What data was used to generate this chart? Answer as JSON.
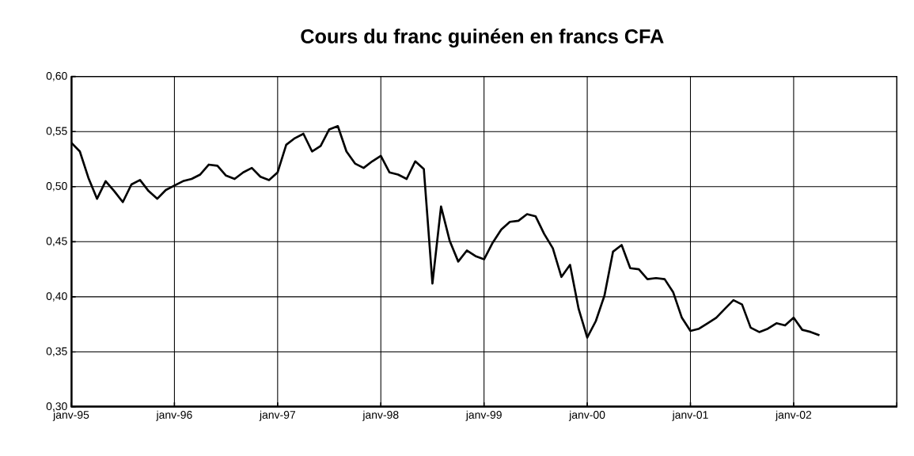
{
  "chart_data": {
    "type": "line",
    "title": "Cours du franc guinéen en francs CFA",
    "x": [
      "1995-01",
      "1995-02",
      "1995-03",
      "1995-04",
      "1995-05",
      "1995-06",
      "1995-07",
      "1995-08",
      "1995-09",
      "1995-10",
      "1995-11",
      "1995-12",
      "1996-01",
      "1996-02",
      "1996-03",
      "1996-04",
      "1996-05",
      "1996-06",
      "1996-07",
      "1996-08",
      "1996-09",
      "1996-10",
      "1996-11",
      "1996-12",
      "1997-01",
      "1997-02",
      "1997-03",
      "1997-04",
      "1997-05",
      "1997-06",
      "1997-07",
      "1997-08",
      "1997-09",
      "1997-10",
      "1997-11",
      "1997-12",
      "1998-01",
      "1998-02",
      "1998-03",
      "1998-04",
      "1998-05",
      "1998-06",
      "1998-07",
      "1998-08",
      "1998-09",
      "1998-10",
      "1998-11",
      "1998-12",
      "1999-01",
      "1999-02",
      "1999-03",
      "1999-04",
      "1999-05",
      "1999-06",
      "1999-07",
      "1999-08",
      "1999-09",
      "1999-10",
      "1999-11",
      "1999-12",
      "2000-01",
      "2000-02",
      "2000-03",
      "2000-04",
      "2000-05",
      "2000-06",
      "2000-07",
      "2000-08",
      "2000-09",
      "2000-10",
      "2000-11",
      "2000-12",
      "2001-01",
      "2001-02",
      "2001-03",
      "2001-04",
      "2001-05",
      "2001-06",
      "2001-07",
      "2001-08",
      "2001-09",
      "2001-10",
      "2001-11",
      "2001-12",
      "2002-01",
      "2002-02",
      "2002-03",
      "2002-04"
    ],
    "values": [
      0.54,
      0.532,
      0.508,
      0.489,
      0.505,
      0.496,
      0.486,
      0.502,
      0.506,
      0.496,
      0.489,
      0.497,
      0.501,
      0.505,
      0.507,
      0.511,
      0.52,
      0.519,
      0.51,
      0.507,
      0.513,
      0.517,
      0.509,
      0.506,
      0.513,
      0.538,
      0.544,
      0.548,
      0.532,
      0.537,
      0.552,
      0.555,
      0.532,
      0.521,
      0.517,
      0.523,
      0.528,
      0.513,
      0.511,
      0.507,
      0.523,
      0.516,
      0.412,
      0.482,
      0.451,
      0.432,
      0.442,
      0.437,
      0.434,
      0.449,
      0.461,
      0.468,
      0.469,
      0.475,
      0.473,
      0.457,
      0.444,
      0.418,
      0.429,
      0.389,
      0.363,
      0.378,
      0.401,
      0.441,
      0.447,
      0.426,
      0.425,
      0.416,
      0.417,
      0.416,
      0.404,
      0.381,
      0.369,
      0.371,
      0.376,
      0.381,
      0.389,
      0.397,
      0.393,
      0.372,
      0.368,
      0.371,
      0.376,
      0.374,
      0.381,
      0.37,
      0.368,
      0.365
    ],
    "color": "#000000",
    "line_style": "solid",
    "xlim": [
      "1995-01",
      "2003-01"
    ],
    "xticks": [
      {
        "value": "1995-01",
        "label": "janv-95"
      },
      {
        "value": "1996-01",
        "label": "janv-96"
      },
      {
        "value": "1997-01",
        "label": "janv-97"
      },
      {
        "value": "1998-01",
        "label": "janv-98"
      },
      {
        "value": "1999-01",
        "label": "janv-99"
      },
      {
        "value": "2000-01",
        "label": "janv-00"
      },
      {
        "value": "2001-01",
        "label": "janv-01"
      },
      {
        "value": "2002-01",
        "label": "janv-02"
      },
      {
        "value": "2003-01",
        "label": null
      }
    ],
    "ylim": [
      0.3,
      0.6
    ],
    "yticks": [
      {
        "value": 0.3,
        "label": "0,30"
      },
      {
        "value": 0.35,
        "label": "0,35"
      },
      {
        "value": 0.4,
        "label": "0,40"
      },
      {
        "value": 0.45,
        "label": "0,45"
      },
      {
        "value": 0.5,
        "label": "0,50"
      },
      {
        "value": 0.55,
        "label": "0,55"
      },
      {
        "value": 0.6,
        "label": "0,60"
      }
    ],
    "grid": true
  }
}
